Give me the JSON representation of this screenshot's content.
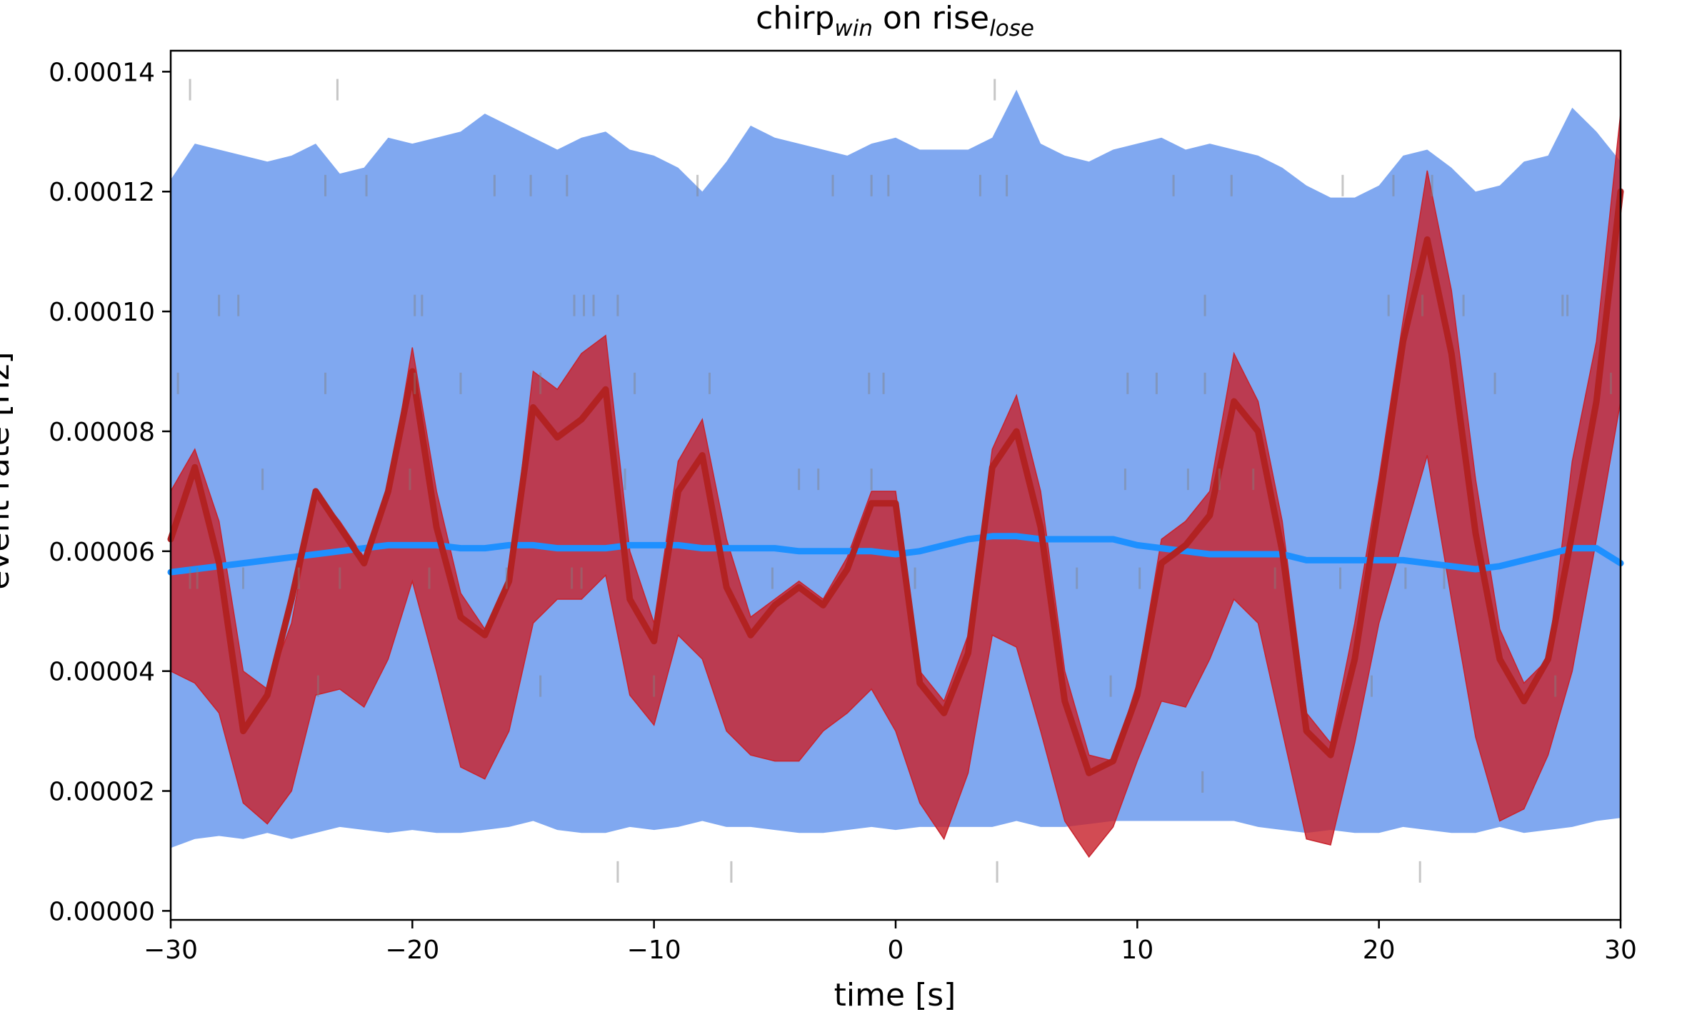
{
  "chart_data": {
    "type": "line",
    "title": {
      "main": "chirp",
      "main_sub": "win",
      "connector": " on ",
      "second": "rise",
      "second_sub": "lose"
    },
    "xlabel": "time [s]",
    "ylabel": "event rate [Hz]",
    "xlim": [
      -30,
      30
    ],
    "ylim": [
      -1.5e-06,
      0.0001435
    ],
    "xticks": [
      -30,
      -20,
      -10,
      0,
      10,
      20,
      30
    ],
    "xtick_labels": [
      "−30",
      "−20",
      "−10",
      "0",
      "10",
      "20",
      "30"
    ],
    "yticks": [
      0,
      2e-05,
      4e-05,
      6e-05,
      8e-05,
      0.0001,
      0.00012,
      0.00014
    ],
    "ytick_labels": [
      "0.00000",
      "0.00002",
      "0.00004",
      "0.00006",
      "0.00008",
      "0.00010",
      "0.00012",
      "0.00014"
    ],
    "grid": false,
    "legend": false,
    "colors": {
      "shuffled_band": "#6495ED",
      "shuffled_median": "#1E90FF",
      "observed_band": "#C8232D",
      "observed_median": "#B22222",
      "event_ticks": "#808080"
    },
    "series": [
      {
        "role": "shuffled_band",
        "x": [
          -30,
          -29,
          -28,
          -27,
          -26,
          -25,
          -24,
          -23,
          -22,
          -21,
          -20,
          -19,
          -18,
          -17,
          -16,
          -15,
          -14,
          -13,
          -12,
          -11,
          -10,
          -9,
          -8,
          -7,
          -6,
          -5,
          -4,
          -3,
          -2,
          -1,
          0,
          1,
          2,
          3,
          4,
          5,
          6,
          7,
          8,
          9,
          10,
          11,
          12,
          13,
          14,
          15,
          16,
          17,
          18,
          19,
          20,
          21,
          22,
          23,
          24,
          25,
          26,
          27,
          28,
          29,
          30
        ],
        "upper": [
          0.000122,
          0.000128,
          0.000127,
          0.000126,
          0.000125,
          0.000126,
          0.000128,
          0.000123,
          0.000124,
          0.000129,
          0.000128,
          0.000129,
          0.00013,
          0.000133,
          0.000131,
          0.000129,
          0.000127,
          0.000129,
          0.00013,
          0.000127,
          0.000126,
          0.000124,
          0.00012,
          0.000125,
          0.000131,
          0.000129,
          0.000128,
          0.000127,
          0.000126,
          0.000128,
          0.000129,
          0.000127,
          0.000127,
          0.000127,
          0.000129,
          0.000137,
          0.000128,
          0.000126,
          0.000125,
          0.000127,
          0.000128,
          0.000129,
          0.000127,
          0.000128,
          0.000127,
          0.000126,
          0.000124,
          0.000121,
          0.000119,
          0.000119,
          0.000121,
          0.000126,
          0.000127,
          0.000124,
          0.00012,
          0.000121,
          0.000125,
          0.000126,
          0.000134,
          0.00013,
          0.000125
        ],
        "lower": [
          1.05e-05,
          1.2e-05,
          1.25e-05,
          1.2e-05,
          1.3e-05,
          1.2e-05,
          1.3e-05,
          1.4e-05,
          1.35e-05,
          1.3e-05,
          1.35e-05,
          1.3e-05,
          1.3e-05,
          1.35e-05,
          1.4e-05,
          1.5e-05,
          1.35e-05,
          1.3e-05,
          1.3e-05,
          1.4e-05,
          1.35e-05,
          1.4e-05,
          1.5e-05,
          1.4e-05,
          1.4e-05,
          1.35e-05,
          1.3e-05,
          1.3e-05,
          1.35e-05,
          1.4e-05,
          1.35e-05,
          1.4e-05,
          1.4e-05,
          1.4e-05,
          1.4e-05,
          1.5e-05,
          1.4e-05,
          1.4e-05,
          1.45e-05,
          1.5e-05,
          1.5e-05,
          1.5e-05,
          1.5e-05,
          1.5e-05,
          1.5e-05,
          1.4e-05,
          1.35e-05,
          1.3e-05,
          1.35e-05,
          1.3e-05,
          1.3e-05,
          1.4e-05,
          1.35e-05,
          1.3e-05,
          1.3e-05,
          1.4e-05,
          1.3e-05,
          1.35e-05,
          1.4e-05,
          1.5e-05,
          1.55e-05
        ]
      },
      {
        "role": "shuffled_median",
        "x": [
          -30,
          -29,
          -28,
          -27,
          -26,
          -25,
          -24,
          -23,
          -22,
          -21,
          -20,
          -19,
          -18,
          -17,
          -16,
          -15,
          -14,
          -13,
          -12,
          -11,
          -10,
          -9,
          -8,
          -7,
          -6,
          -5,
          -4,
          -3,
          -2,
          -1,
          0,
          1,
          2,
          3,
          4,
          5,
          6,
          7,
          8,
          9,
          10,
          11,
          12,
          13,
          14,
          15,
          16,
          17,
          18,
          19,
          20,
          21,
          22,
          23,
          24,
          25,
          26,
          27,
          28,
          29,
          30
        ],
        "values": [
          5.65e-05,
          5.7e-05,
          5.75e-05,
          5.8e-05,
          5.85e-05,
          5.9e-05,
          5.95e-05,
          6e-05,
          6.05e-05,
          6.1e-05,
          6.1e-05,
          6.1e-05,
          6.05e-05,
          6.05e-05,
          6.1e-05,
          6.1e-05,
          6.05e-05,
          6.05e-05,
          6.05e-05,
          6.1e-05,
          6.1e-05,
          6.1e-05,
          6.05e-05,
          6.05e-05,
          6.05e-05,
          6.05e-05,
          6e-05,
          6e-05,
          6e-05,
          6e-05,
          5.95e-05,
          6e-05,
          6.1e-05,
          6.2e-05,
          6.25e-05,
          6.25e-05,
          6.2e-05,
          6.2e-05,
          6.2e-05,
          6.2e-05,
          6.1e-05,
          6.05e-05,
          6e-05,
          5.95e-05,
          5.95e-05,
          5.95e-05,
          5.95e-05,
          5.85e-05,
          5.85e-05,
          5.85e-05,
          5.85e-05,
          5.85e-05,
          5.8e-05,
          5.75e-05,
          5.7e-05,
          5.75e-05,
          5.85e-05,
          5.95e-05,
          6.05e-05,
          6.05e-05,
          5.8e-05
        ]
      },
      {
        "role": "observed_band",
        "x": [
          -30,
          -29,
          -28,
          -27,
          -26,
          -25,
          -24,
          -23,
          -22,
          -21,
          -20,
          -19,
          -18,
          -17,
          -16,
          -15,
          -14,
          -13,
          -12,
          -11,
          -10,
          -9,
          -8,
          -7,
          -6,
          -5,
          -4,
          -3,
          -2,
          -1,
          0,
          1,
          2,
          3,
          4,
          5,
          6,
          7,
          8,
          9,
          10,
          11,
          12,
          13,
          14,
          15,
          16,
          17,
          18,
          19,
          20,
          21,
          22,
          23,
          24,
          25,
          26,
          27,
          28,
          29,
          30
        ],
        "upper": [
          7e-05,
          7.7e-05,
          6.5e-05,
          4e-05,
          3.7e-05,
          4.8e-05,
          7e-05,
          6.5e-05,
          5.9e-05,
          7e-05,
          9.4e-05,
          7e-05,
          5.3e-05,
          4.7e-05,
          5.5e-05,
          9e-05,
          8.7e-05,
          9.3e-05,
          9.6e-05,
          6e-05,
          4.8e-05,
          7.5e-05,
          8.2e-05,
          6.2e-05,
          4.9e-05,
          5.2e-05,
          5.5e-05,
          5.2e-05,
          5.9e-05,
          7e-05,
          7e-05,
          4e-05,
          3.5e-05,
          4.6e-05,
          7.7e-05,
          8.6e-05,
          7e-05,
          4e-05,
          2.6e-05,
          2.5e-05,
          3.8e-05,
          6.2e-05,
          6.5e-05,
          7e-05,
          9.3e-05,
          8.5e-05,
          6.5e-05,
          3.3e-05,
          2.8e-05,
          4.8e-05,
          7.2e-05,
          9.85e-05,
          0.0001235,
          0.0001035,
          7.2e-05,
          4.7e-05,
          3.8e-05,
          4.2e-05,
          7.5e-05,
          9.5e-05,
          0.000133
        ],
        "lower": [
          4e-05,
          3.8e-05,
          3.3e-05,
          1.8e-05,
          1.45e-05,
          2e-05,
          3.6e-05,
          3.7e-05,
          3.4e-05,
          4.2e-05,
          5.5e-05,
          4e-05,
          2.4e-05,
          2.2e-05,
          3e-05,
          4.8e-05,
          5.2e-05,
          5.2e-05,
          5.6e-05,
          3.6e-05,
          3.1e-05,
          4.6e-05,
          4.2e-05,
          3e-05,
          2.6e-05,
          2.5e-05,
          2.5e-05,
          3e-05,
          3.3e-05,
          3.7e-05,
          3e-05,
          1.8e-05,
          1.2e-05,
          2.3e-05,
          4.6e-05,
          4.4e-05,
          3e-05,
          1.5e-05,
          9e-06,
          1.4e-05,
          2.5e-05,
          3.5e-05,
          3.4e-05,
          4.2e-05,
          5.2e-05,
          4.8e-05,
          3e-05,
          1.2e-05,
          1.1e-05,
          2.8e-05,
          4.8e-05,
          6.2e-05,
          7.6e-05,
          5.2e-05,
          2.9e-05,
          1.5e-05,
          1.7e-05,
          2.6e-05,
          4e-05,
          6.2e-05,
          8.5e-05
        ]
      },
      {
        "role": "observed_median",
        "x": [
          -30,
          -29,
          -28,
          -27,
          -26,
          -25,
          -24,
          -23,
          -22,
          -21,
          -20,
          -19,
          -18,
          -17,
          -16,
          -15,
          -14,
          -13,
          -12,
          -11,
          -10,
          -9,
          -8,
          -7,
          -6,
          -5,
          -4,
          -3,
          -2,
          -1,
          0,
          1,
          2,
          3,
          4,
          5,
          6,
          7,
          8,
          9,
          10,
          11,
          12,
          13,
          14,
          15,
          16,
          17,
          18,
          19,
          20,
          21,
          22,
          23,
          24,
          25,
          26,
          27,
          28,
          29,
          30
        ],
        "values": [
          6.2e-05,
          7.4e-05,
          5.8e-05,
          3e-05,
          3.6e-05,
          5.2e-05,
          7e-05,
          6.4e-05,
          5.8e-05,
          7e-05,
          9e-05,
          6.4e-05,
          4.9e-05,
          4.6e-05,
          5.5e-05,
          8.4e-05,
          7.9e-05,
          8.2e-05,
          8.7e-05,
          5.2e-05,
          4.5e-05,
          7e-05,
          7.6e-05,
          5.4e-05,
          4.6e-05,
          5.1e-05,
          5.4e-05,
          5.1e-05,
          5.7e-05,
          6.8e-05,
          6.8e-05,
          3.8e-05,
          3.3e-05,
          4.3e-05,
          7.4e-05,
          8e-05,
          6.4e-05,
          3.5e-05,
          2.3e-05,
          2.5e-05,
          3.6e-05,
          5.8e-05,
          6.1e-05,
          6.6e-05,
          8.5e-05,
          8e-05,
          6e-05,
          3e-05,
          2.6e-05,
          4.2e-05,
          6.8e-05,
          9.5e-05,
          0.000112,
          9.3e-05,
          6.3e-05,
          4.2e-05,
          3.5e-05,
          4.2e-05,
          6.3e-05,
          8.5e-05,
          0.00012
        ]
      }
    ],
    "event_raster": {
      "rows": [
        {
          "y": 0.000137,
          "x": [
            -29.2,
            -23.1,
            4.1
          ]
        },
        {
          "y": 0.000121,
          "x": [
            -23.6,
            -21.9,
            -16.6,
            -15.1,
            -13.6,
            -8.2,
            -2.6,
            -1.0,
            -0.3,
            3.5,
            4.6,
            11.5,
            13.9,
            18.5,
            20.6,
            22.2
          ]
        },
        {
          "y": 0.000101,
          "x": [
            -28.0,
            -27.2,
            -19.9,
            -19.6,
            -13.3,
            -12.9,
            -12.5,
            -11.5,
            12.8,
            20.4,
            21.8,
            23.5,
            27.6,
            27.8
          ]
        },
        {
          "y": 8.8e-05,
          "x": [
            -29.7,
            -23.6,
            -19.9,
            -18.0,
            -14.7,
            -10.8,
            -7.7,
            -1.1,
            -0.5,
            9.6,
            10.8,
            12.8,
            24.8,
            29.6
          ]
        },
        {
          "y": 7.2e-05,
          "x": [
            -26.2,
            -20.1,
            -11.2,
            -4.0,
            -3.2,
            -1.0,
            9.5,
            12.1,
            13.4,
            14.8
          ]
        },
        {
          "y": 5.55e-05,
          "x": [
            -29.2,
            -28.9,
            -27.0,
            -24.7,
            -23.0,
            -19.3,
            -16.1,
            -13.4,
            -13.0,
            -5.1,
            0.8,
            7.5,
            10.1,
            15.7,
            18.4,
            21.1,
            22.7
          ]
        },
        {
          "y": 3.75e-05,
          "x": [
            -23.9,
            -14.7,
            -10.0,
            8.9,
            19.7,
            27.3
          ]
        },
        {
          "y": 2.15e-05,
          "x": [
            12.7
          ]
        },
        {
          "y": 6.5e-06,
          "x": [
            -11.5,
            -6.8,
            4.2,
            21.7
          ]
        }
      ]
    }
  }
}
